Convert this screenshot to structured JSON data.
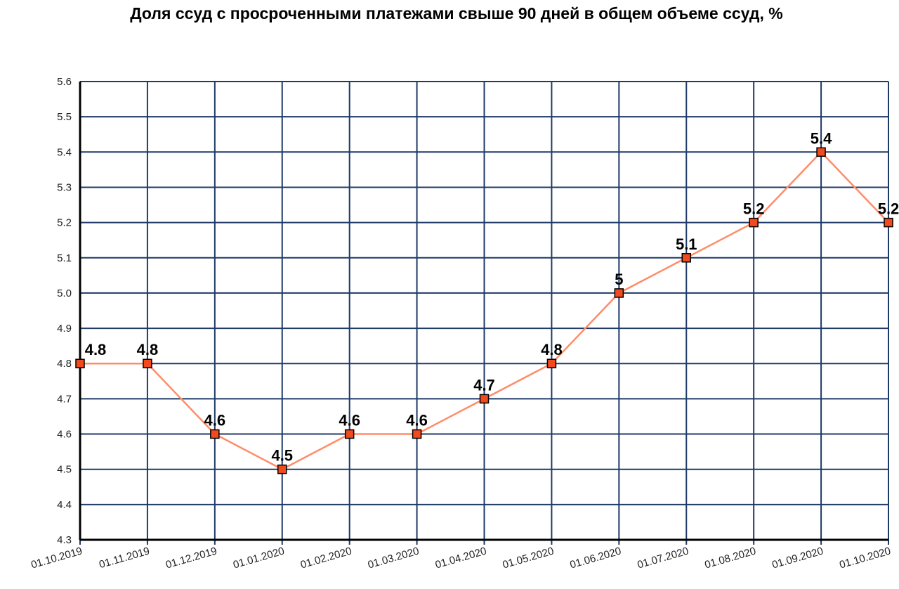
{
  "chart_data": {
    "type": "line",
    "title": "Доля ссуд с просроченными платежами свыше 90 дней в общем объеме ссуд, %",
    "xlabel": "",
    "ylabel": "",
    "categories": [
      "01.10.2019",
      "01.11.2019",
      "01.12.2019",
      "01.01.2020",
      "01.02.2020",
      "01.03.2020",
      "01.04.2020",
      "01.05.2020",
      "01.06.2020",
      "01.07.2020",
      "01.08.2020",
      "01.09.2020",
      "01.10.2020"
    ],
    "series": [
      {
        "values": [
          4.8,
          4.8,
          4.6,
          4.5,
          4.6,
          4.6,
          4.7,
          4.8,
          5.0,
          5.1,
          5.2,
          5.4,
          5.2
        ],
        "data_labels": [
          "4.8",
          "4.8",
          "4.6",
          "4.5",
          "4.6",
          "4.6",
          "4.7",
          "4.8",
          "5",
          "5.1",
          "5.2",
          "5.4",
          "5.2"
        ]
      }
    ],
    "ylim": [
      4.3,
      5.6
    ],
    "yticks": [
      "4.3",
      "4.4",
      "4.5",
      "4.6",
      "4.7",
      "4.8",
      "4.9",
      "5.0",
      "5.1",
      "5.2",
      "5.3",
      "5.4",
      "5.5",
      "5.6"
    ],
    "grid": true,
    "colors": {
      "grid": "#1f3a68",
      "line": "#ff8c69",
      "marker_fill": "#f04a1e",
      "marker_stroke": "#000000"
    }
  }
}
